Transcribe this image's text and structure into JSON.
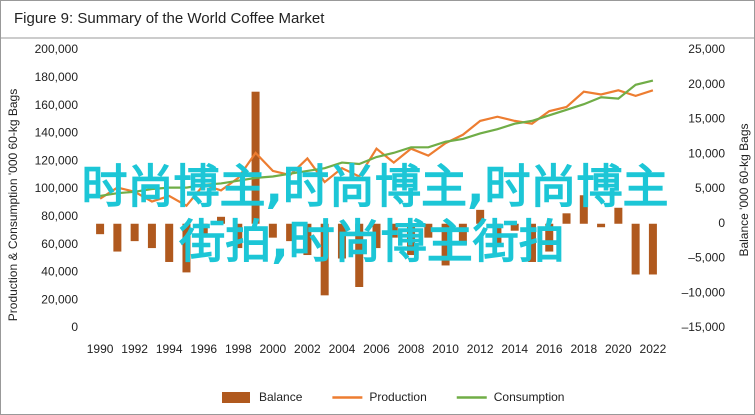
{
  "chart_data": {
    "type": "combo",
    "title": "Figure 9: Summary of the World Coffee Market",
    "y_label": "Production & Consumption '000 60-kg Bags",
    "y2_label": "Balance '000 60-kg Bags",
    "x": [
      1990,
      1991,
      1992,
      1993,
      1994,
      1995,
      1996,
      1997,
      1998,
      1999,
      2000,
      2001,
      2002,
      2003,
      2004,
      2005,
      2006,
      2007,
      2008,
      2009,
      2010,
      2011,
      2012,
      2013,
      2014,
      2015,
      2016,
      2017,
      2018,
      2019,
      2020,
      2021,
      2022
    ],
    "xlim": [
      1989.3,
      2022.7
    ],
    "xticks": [
      1990,
      1992,
      1994,
      1996,
      1998,
      2000,
      2002,
      2004,
      2006,
      2008,
      2010,
      2012,
      2014,
      2016,
      2018,
      2020,
      2022
    ],
    "ylim": [
      0,
      200000
    ],
    "yticks": [
      0,
      {
        "value": 20000,
        "label": "20,000"
      },
      {
        "value": 40000,
        "label": "40,000"
      },
      {
        "value": 60000,
        "label": "60,000"
      },
      {
        "value": 80000,
        "label": "80,000"
      },
      {
        "value": 100000,
        "label": "100,000"
      },
      {
        "value": 120000,
        "label": "120,000"
      },
      {
        "value": 140000,
        "label": "140,000"
      },
      {
        "value": 160000,
        "label": "160,000"
      },
      {
        "value": 180000,
        "label": "180,000"
      },
      {
        "value": 200000,
        "label": "200,000"
      }
    ],
    "y2lim": [
      -15000,
      25000
    ],
    "y2ticks": [
      {
        "value": -15000,
        "label": "–15,000"
      },
      {
        "value": -10000,
        "label": "–10,000"
      },
      {
        "value": -5000,
        "label": "–5,000"
      },
      0,
      {
        "value": 5000,
        "label": "5,000"
      },
      {
        "value": 10000,
        "label": "10,000"
      },
      {
        "value": 15000,
        "label": "15,000"
      },
      {
        "value": 20000,
        "label": "20,000"
      },
      {
        "value": 25000,
        "label": "25,000"
      }
    ],
    "series": [
      {
        "name": "Balance",
        "type": "bar",
        "axis": "y2",
        "color": "#b0591e",
        "values": [
          -1500,
          -4000,
          -2500,
          -3500,
          -5500,
          -7000,
          -1500,
          1000,
          -3500,
          19000,
          -2000,
          -2500,
          -4500,
          -10300,
          -5000,
          -9100,
          -3500,
          -2000,
          -4500,
          -2000,
          -6000,
          -3000,
          2000,
          -3000,
          -1000,
          -5500,
          -4000,
          1500,
          4100,
          -500,
          2300,
          -7300,
          -7300
        ]
      },
      {
        "name": "Production",
        "type": "line",
        "color": "#ed7d31",
        "values": [
          93000,
          101000,
          98000,
          91000,
          95000,
          88000,
          103000,
          99000,
          108000,
          126000,
          113000,
          110000,
          122000,
          105000,
          115000,
          109000,
          129000,
          119000,
          129000,
          124000,
          133000,
          139000,
          149000,
          152000,
          149000,
          147000,
          156000,
          159000,
          170000,
          168000,
          171000,
          167000,
          171000
        ]
      },
      {
        "name": "Consumption",
        "type": "line",
        "color": "#70ad47",
        "values": [
          95000,
          97000,
          98000,
          100000,
          101000,
          101000,
          103000,
          104000,
          106000,
          108000,
          109000,
          111000,
          113000,
          115000,
          119000,
          118000,
          123000,
          126000,
          130000,
          130000,
          134000,
          136000,
          140000,
          143000,
          147000,
          149000,
          153000,
          157000,
          161000,
          166000,
          165000,
          175000,
          178000
        ]
      }
    ]
  },
  "watermark": {
    "lines": [
      "时尚博主,时尚博主,时尚博主",
      "街拍,时尚博主街拍"
    ],
    "color": "#1cc6d6"
  }
}
